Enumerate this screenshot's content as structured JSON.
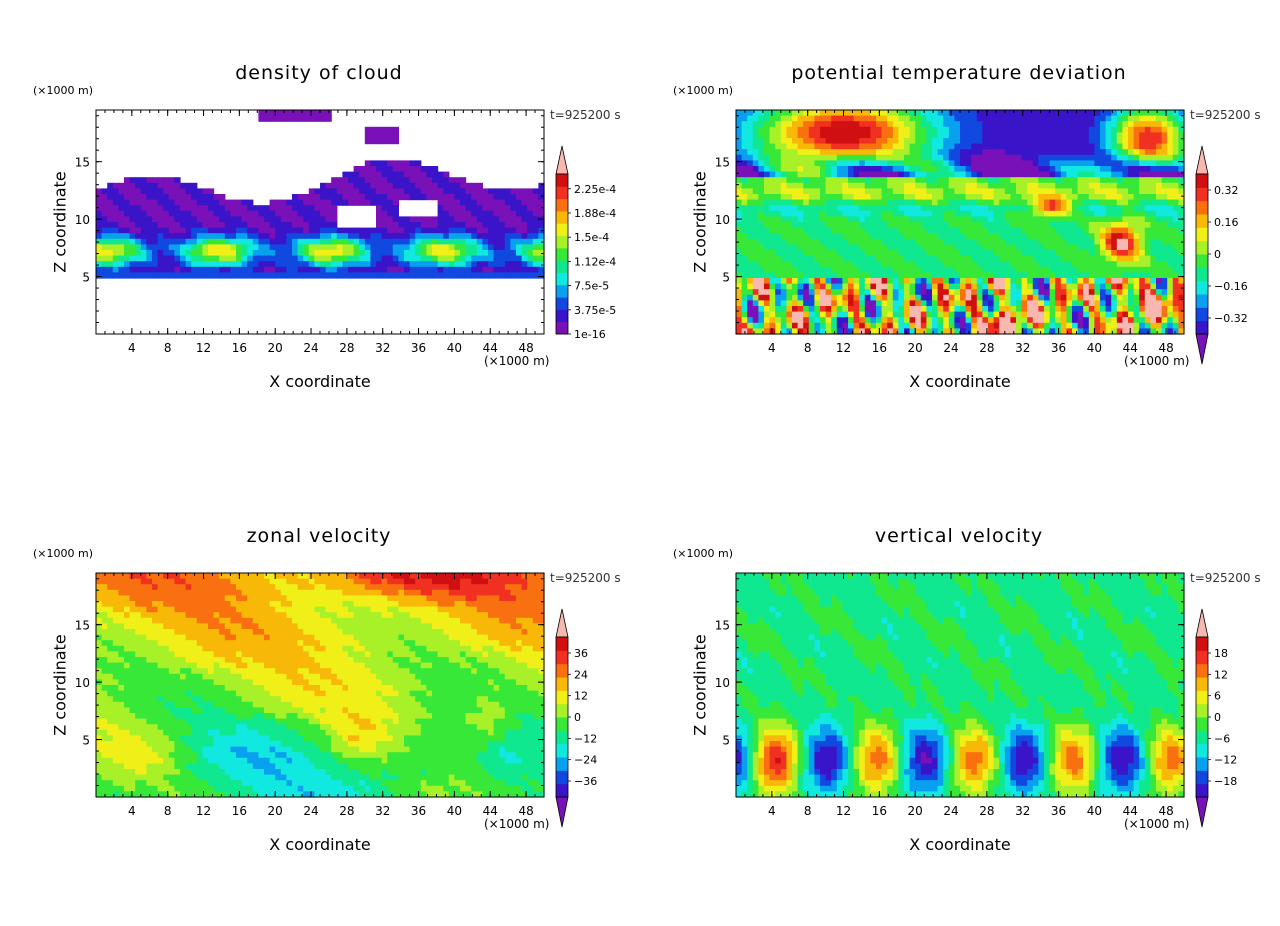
{
  "chart_data": [
    {
      "type": "heatmap",
      "title": "density of cloud",
      "xlabel": "X coordinate",
      "ylabel": "Z coordinate",
      "x_unit": "(×1000 m)",
      "z_unit": "(×1000 m)",
      "time_label": "t=925200 s",
      "xlim": [
        0,
        50
      ],
      "ylim": [
        0,
        19.5
      ],
      "x_ticks": [
        "4",
        "8",
        "12",
        "16",
        "20",
        "24",
        "28",
        "32",
        "36",
        "40",
        "44",
        "48"
      ],
      "y_ticks": [
        "5",
        "10",
        "15"
      ],
      "colorbar_labels": [
        "2.25e-4",
        "1.88e-4",
        "1.5e-4",
        "1.12e-4",
        "7.5e-5",
        "3.75e-5",
        "1e-16"
      ],
      "colorbar_has_lower_triangle": false
    },
    {
      "type": "heatmap",
      "title": "potential temperature deviation",
      "xlabel": "X coordinate",
      "ylabel": "Z coordinate",
      "x_unit": "(×1000 m)",
      "z_unit": "(×1000 m)",
      "time_label": "t=925200 s",
      "xlim": [
        0,
        50
      ],
      "ylim": [
        0,
        19.5
      ],
      "x_ticks": [
        "4",
        "8",
        "12",
        "16",
        "20",
        "24",
        "28",
        "32",
        "36",
        "40",
        "44",
        "48"
      ],
      "y_ticks": [
        "5",
        "10",
        "15"
      ],
      "colorbar_labels": [
        "0.32",
        "0.16",
        "0",
        "−0.16",
        "−0.32"
      ],
      "colorbar_has_lower_triangle": true
    },
    {
      "type": "heatmap",
      "title": "zonal velocity",
      "xlabel": "X coordinate",
      "ylabel": "Z coordinate",
      "x_unit": "(×1000 m)",
      "z_unit": "(×1000 m)",
      "time_label": "t=925200 s",
      "xlim": [
        0,
        50
      ],
      "ylim": [
        0,
        19.5
      ],
      "x_ticks": [
        "4",
        "8",
        "12",
        "16",
        "20",
        "24",
        "28",
        "32",
        "36",
        "40",
        "44",
        "48"
      ],
      "y_ticks": [
        "5",
        "10",
        "15"
      ],
      "colorbar_labels": [
        "36",
        "24",
        "12",
        "0",
        "−12",
        "−24",
        "−36"
      ],
      "colorbar_has_lower_triangle": true
    },
    {
      "type": "heatmap",
      "title": "vertical velocity",
      "xlabel": "X coordinate",
      "ylabel": "Z coordinate",
      "x_unit": "(×1000 m)",
      "z_unit": "(×1000 m)",
      "time_label": "t=925200 s",
      "xlim": [
        0,
        50
      ],
      "ylim": [
        0,
        19.5
      ],
      "x_ticks": [
        "4",
        "8",
        "12",
        "16",
        "20",
        "24",
        "28",
        "32",
        "36",
        "40",
        "44",
        "48"
      ],
      "y_ticks": [
        "5",
        "10",
        "15"
      ],
      "colorbar_labels": [
        "18",
        "12",
        "6",
        "0",
        "−6",
        "−12",
        "−18"
      ],
      "colorbar_has_lower_triangle": true
    }
  ],
  "colors": {
    "scale": [
      "#7a10b8",
      "#3a14c8",
      "#1048e0",
      "#0aa0f0",
      "#10e8e0",
      "#10e890",
      "#38e838",
      "#a8f028",
      "#f0f018",
      "#f8b808",
      "#f87010",
      "#f03020",
      "#d01010",
      "#f8b8b0"
    ],
    "cloud_white": "#ffffff",
    "frame": "#000000"
  }
}
